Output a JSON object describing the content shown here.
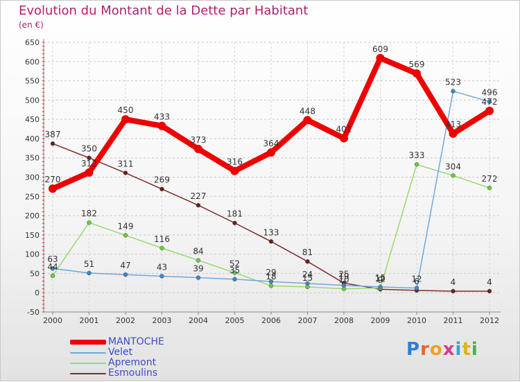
{
  "header": {
    "title": "Evolution du Montant de la Dette par Habitant",
    "subtitle": "(en €)"
  },
  "logo": {
    "text": "Proxiti",
    "letter_colors": [
      "#2f7fd0",
      "#e8642a",
      "#f0a21c",
      "#d63a8a",
      "#3aa0d6",
      "#e0b21a",
      "#4bb043"
    ]
  },
  "chart_data": {
    "type": "line",
    "title": "Evolution du Montant de la Dette par Habitant",
    "subtitle": "(en €)",
    "xlabel": "",
    "ylabel": "",
    "x": [
      "2000",
      "2001",
      "2002",
      "2003",
      "2004",
      "2005",
      "2006",
      "2007",
      "2008",
      "2009",
      "2010",
      "2011",
      "2012"
    ],
    "ylim": [
      -50,
      650
    ],
    "yticks": [
      -50,
      0,
      50,
      100,
      150,
      200,
      250,
      300,
      350,
      400,
      450,
      500,
      550,
      600,
      650
    ],
    "grid": "dashed-horizontal",
    "legend_position": "bottom-left",
    "series": [
      {
        "name": "MANTOCHE",
        "color": "#ee0000",
        "marker": "#ee0000",
        "thick": true,
        "values": [
          270,
          312,
          450,
          433,
          373,
          316,
          364,
          448,
          401,
          609,
          569,
          413,
          472
        ],
        "labels": [
          "270",
          "312",
          "450",
          "433",
          "373",
          "316",
          "364",
          "448",
          "401",
          "609",
          "569",
          "413",
          "472"
        ]
      },
      {
        "name": "Velet",
        "color": "#6fa8dc",
        "marker": "#3d85c6",
        "thick": false,
        "values": [
          63,
          51,
          47,
          43,
          39,
          35,
          29,
          24,
          19,
          15,
          12,
          523,
          496
        ],
        "labels": [
          "63",
          "51",
          "47",
          "43",
          "39",
          "35",
          "29",
          "24",
          "19",
          "15",
          "12",
          "523",
          "496"
        ]
      },
      {
        "name": "Apremont",
        "color": "#9ad870",
        "marker": "#6ccb3c",
        "thick": false,
        "values": [
          44,
          182,
          149,
          116,
          84,
          52,
          18,
          15,
          10,
          12,
          333,
          304,
          272
        ],
        "labels": [
          "44",
          "182",
          "149",
          "116",
          "84",
          "52",
          "18",
          "15",
          "10",
          "12",
          "333",
          "304",
          "272"
        ]
      },
      {
        "name": "Esmoulins",
        "color": "#7b2b2b",
        "marker": "#6b1f1f",
        "thick": false,
        "values": [
          387,
          350,
          311,
          269,
          227,
          181,
          133,
          81,
          25,
          9,
          6,
          4,
          4
        ],
        "labels": [
          "387",
          "350",
          "311",
          "269",
          "227",
          "181",
          "133",
          "81",
          "25",
          "9",
          "6",
          "4",
          "4"
        ]
      }
    ]
  }
}
